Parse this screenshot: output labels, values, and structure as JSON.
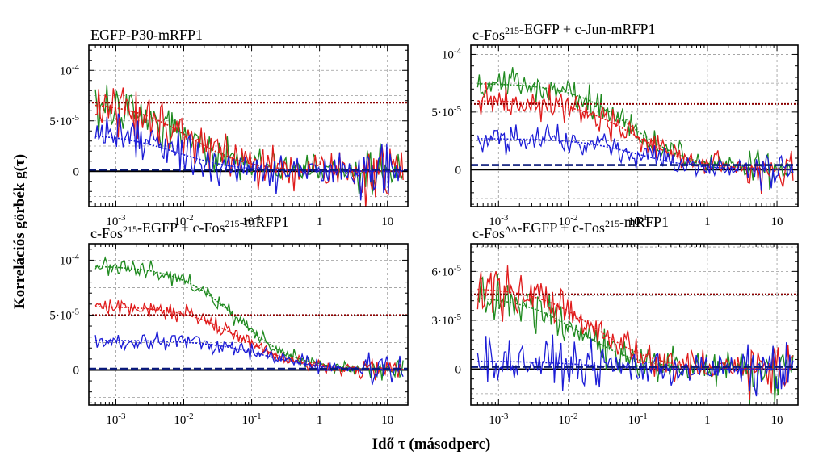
{
  "figure": {
    "ylabel": "Korrelációs görbék g(τ)",
    "xlabel": "Idő τ (másodperc)",
    "series_colors": {
      "green": "#1f8a1f",
      "red": "#e01b1b",
      "blue": "#1c1cd6",
      "darkred": "#8b0000",
      "navy": "#0a1a7a"
    }
  },
  "chart_data": [
    {
      "type": "line",
      "title_parts": [
        {
          "t": "EGFP-P30-mRFP1"
        }
      ],
      "x_scale": "log",
      "xlim": [
        0.0004,
        20
      ],
      "ylim": [
        -3.5e-05,
        0.000125
      ],
      "xticks": [
        {
          "value": 0.001,
          "label": "10^-3"
        },
        {
          "value": 0.01,
          "label": "10^-2"
        },
        {
          "value": 0.1,
          "label": "10^-1"
        },
        {
          "value": 1,
          "label": "1"
        },
        {
          "value": 10,
          "label": "10"
        }
      ],
      "yticks": [
        {
          "value": 0,
          "label": "0"
        },
        {
          "value": 5e-05,
          "label": "5·10^-5"
        },
        {
          "value": 0.0001,
          "label": "10^-4"
        }
      ],
      "grid": true,
      "series": [
        {
          "color": "green",
          "amplitude": 6.8e-05,
          "tau_d": 0.012,
          "noise": 1.4e-05,
          "seed": 11
        },
        {
          "color": "red",
          "amplitude": 6.8e-05,
          "tau_d": 0.012,
          "noise": 1.8e-05,
          "seed": 23
        },
        {
          "color": "blue",
          "amplitude": 3.7e-05,
          "tau_d": 0.008,
          "noise": 1.5e-05,
          "seed": 37
        }
      ],
      "reference_lines": [
        {
          "color": "darkred",
          "style": "dotted",
          "y": 6.8e-05
        },
        {
          "color": "navy",
          "style": "dashed",
          "y": 1.5e-06
        }
      ]
    },
    {
      "type": "line",
      "title_parts": [
        {
          "t": "c-Fos"
        },
        {
          "t": "215",
          "sup": true
        },
        {
          "t": "-EGFP + c-Jun-mRFP1"
        }
      ],
      "x_scale": "log",
      "xlim": [
        0.0004,
        20
      ],
      "ylim": [
        -3.2e-05,
        0.000108
      ],
      "xticks": [
        {
          "value": 0.001,
          "label": "10^-3"
        },
        {
          "value": 0.01,
          "label": "10^-2"
        },
        {
          "value": 0.1,
          "label": "10^-1"
        },
        {
          "value": 1,
          "label": "1"
        },
        {
          "value": 10,
          "label": "10"
        }
      ],
      "yticks": [
        {
          "value": 0,
          "label": "0"
        },
        {
          "value": 5e-05,
          "label": "5·10^-5"
        },
        {
          "value": 0.0001,
          "label": "10^-4"
        }
      ],
      "grid": true,
      "series": [
        {
          "color": "green",
          "amplitude": 7.5e-05,
          "tau_d": 0.08,
          "noise": 9e-06,
          "seed": 41
        },
        {
          "color": "red",
          "amplitude": 6e-05,
          "tau_d": 0.09,
          "noise": 1e-05,
          "seed": 53
        },
        {
          "color": "blue",
          "amplitude": 2.7e-05,
          "tau_d": 0.1,
          "noise": 9e-06,
          "seed": 67
        }
      ],
      "reference_lines": [
        {
          "color": "darkred",
          "style": "dotted",
          "y": 5.7e-05
        },
        {
          "color": "navy",
          "style": "dashed",
          "y": 4e-06
        }
      ]
    },
    {
      "type": "line",
      "title_parts": [
        {
          "t": "c-Fos"
        },
        {
          "t": "215",
          "sup": true
        },
        {
          "t": "-EGFP + c-Fos"
        },
        {
          "t": "215",
          "sup": true
        },
        {
          "t": "-mRFP1"
        }
      ],
      "x_scale": "log",
      "xlim": [
        0.0004,
        20
      ],
      "ylim": [
        -3.2e-05,
        0.000115
      ],
      "xticks": [
        {
          "value": 0.001,
          "label": "10^-3"
        },
        {
          "value": 0.01,
          "label": "10^-2"
        },
        {
          "value": 0.1,
          "label": "10^-1"
        },
        {
          "value": 1,
          "label": "1"
        },
        {
          "value": 10,
          "label": "10"
        }
      ],
      "yticks": [
        {
          "value": 0,
          "label": "0"
        },
        {
          "value": 5e-05,
          "label": "5·10^-5"
        },
        {
          "value": 0.0001,
          "label": "10^-4"
        }
      ],
      "grid": true,
      "series": [
        {
          "color": "green",
          "amplitude": 9.5e-05,
          "tau_d": 0.06,
          "noise": 6e-06,
          "seed": 71
        },
        {
          "color": "red",
          "amplitude": 5.8e-05,
          "tau_d": 0.07,
          "noise": 5e-06,
          "seed": 83
        },
        {
          "color": "blue",
          "amplitude": 2.7e-05,
          "tau_d": 0.15,
          "noise": 6e-06,
          "seed": 97
        }
      ],
      "reference_lines": [
        {
          "color": "darkred",
          "style": "dotted",
          "y": 5e-05
        },
        {
          "color": "navy",
          "style": "dashed",
          "y": 1e-06
        }
      ]
    },
    {
      "type": "line",
      "title_parts": [
        {
          "t": "c-Fos"
        },
        {
          "t": "ΔΔ",
          "sup": true
        },
        {
          "t": "-EGFP + c-Fos"
        },
        {
          "t": "215",
          "sup": true
        },
        {
          "t": "-mRFP1"
        }
      ],
      "x_scale": "log",
      "xlim": [
        0.0004,
        20
      ],
      "ylim": [
        -2.2e-05,
        7.7e-05
      ],
      "xticks": [
        {
          "value": 0.001,
          "label": "10^-3"
        },
        {
          "value": 0.01,
          "label": "10^-2"
        },
        {
          "value": 0.1,
          "label": "10^-1"
        },
        {
          "value": 1,
          "label": "1"
        },
        {
          "value": 10,
          "label": "10"
        }
      ],
      "yticks": [
        {
          "value": 0,
          "label": "0"
        },
        {
          "value": 3e-05,
          "label": "3·10^-5"
        },
        {
          "value": 6e-05,
          "label": "6·10^-5"
        }
      ],
      "grid": true,
      "series": [
        {
          "color": "green",
          "amplitude": 4.5e-05,
          "tau_d": 0.015,
          "noise": 9e-06,
          "seed": 101
        },
        {
          "color": "red",
          "amplitude": 5e-05,
          "tau_d": 0.025,
          "noise": 9e-06,
          "seed": 113
        },
        {
          "color": "blue",
          "amplitude": 5e-06,
          "tau_d": 0.02,
          "noise": 9e-06,
          "seed": 127
        }
      ],
      "reference_lines": [
        {
          "color": "darkred",
          "style": "dotted",
          "y": 4.6e-05
        },
        {
          "color": "navy",
          "style": "dashed",
          "y": 1.5e-06
        }
      ]
    }
  ]
}
